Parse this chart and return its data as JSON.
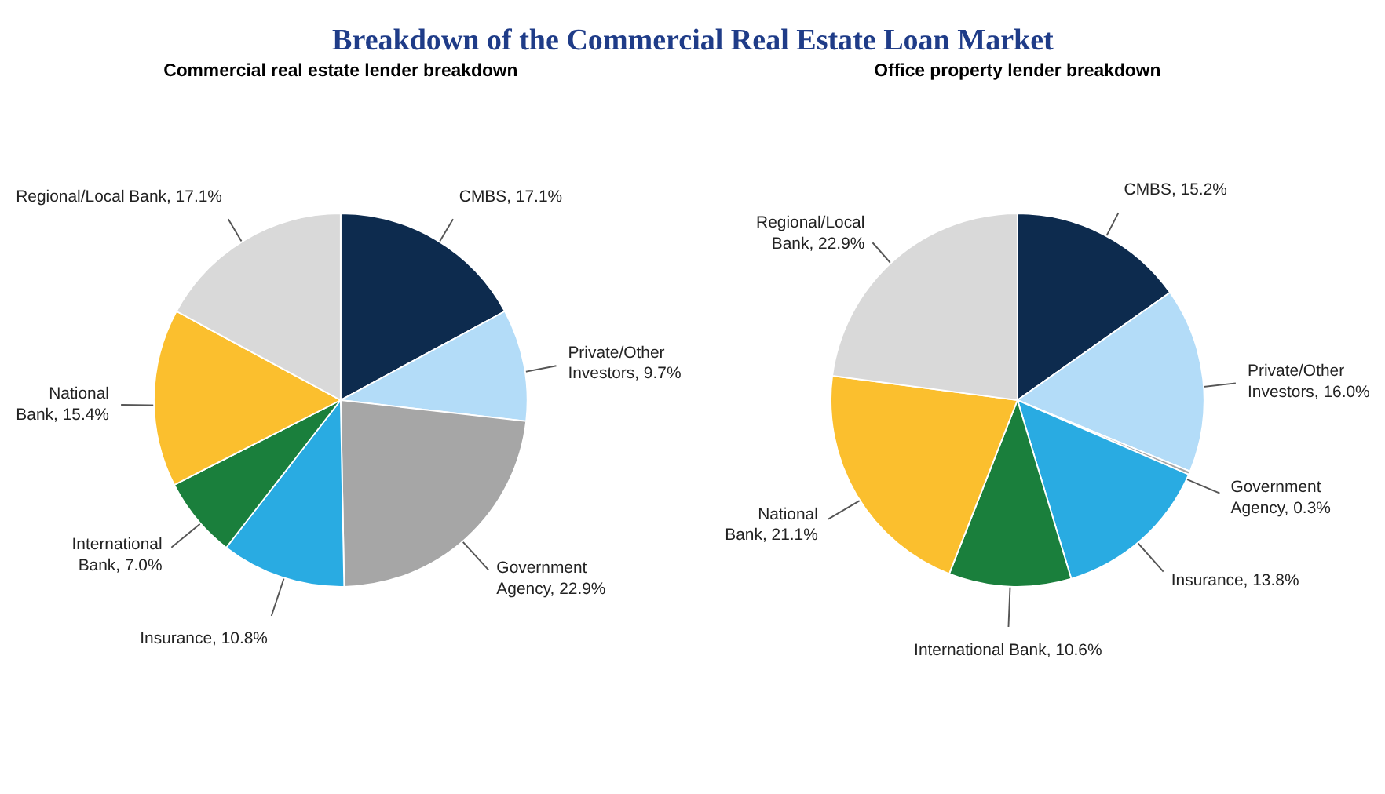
{
  "chart_data": [
    {
      "type": "pie",
      "title": "Breakdown of the Commercial Real Estate Loan Market",
      "subtitle": "Commercial real estate lender breakdown",
      "categories": [
        "CMBS",
        "Private/Other Investors",
        "Government Agency",
        "Insurance",
        "International Bank",
        "National Bank",
        "Regional/Local Bank"
      ],
      "values": [
        17.1,
        9.7,
        22.9,
        10.8,
        7.0,
        15.4,
        17.1
      ],
      "value_labels": [
        "17.1%",
        "9.7%",
        "22.9%",
        "10.8%",
        "7.0%",
        "15.4%",
        "17.1%"
      ],
      "colors": [
        "#0d2b4e",
        "#b3dcf8",
        "#a6a6a6",
        "#29abe2",
        "#1a7f3c",
        "#fbbf2e",
        "#d9d9d9"
      ],
      "legend": false
    },
    {
      "type": "pie",
      "subtitle": "Office property lender breakdown",
      "categories": [
        "CMBS",
        "Private/Other Investors",
        "Government Agency",
        "Insurance",
        "International Bank",
        "National Bank",
        "Regional/Local Bank"
      ],
      "values": [
        15.2,
        16.0,
        0.3,
        13.8,
        10.6,
        21.1,
        22.9
      ],
      "value_labels": [
        "15.2%",
        "16.0%",
        "0.3%",
        "13.8%",
        "10.6%",
        "21.1%",
        "22.9%"
      ],
      "colors": [
        "#0d2b4e",
        "#b3dcf8",
        "#a6a6a6",
        "#29abe2",
        "#1a7f3c",
        "#fbbf2e",
        "#d9d9d9"
      ],
      "legend": false
    }
  ]
}
